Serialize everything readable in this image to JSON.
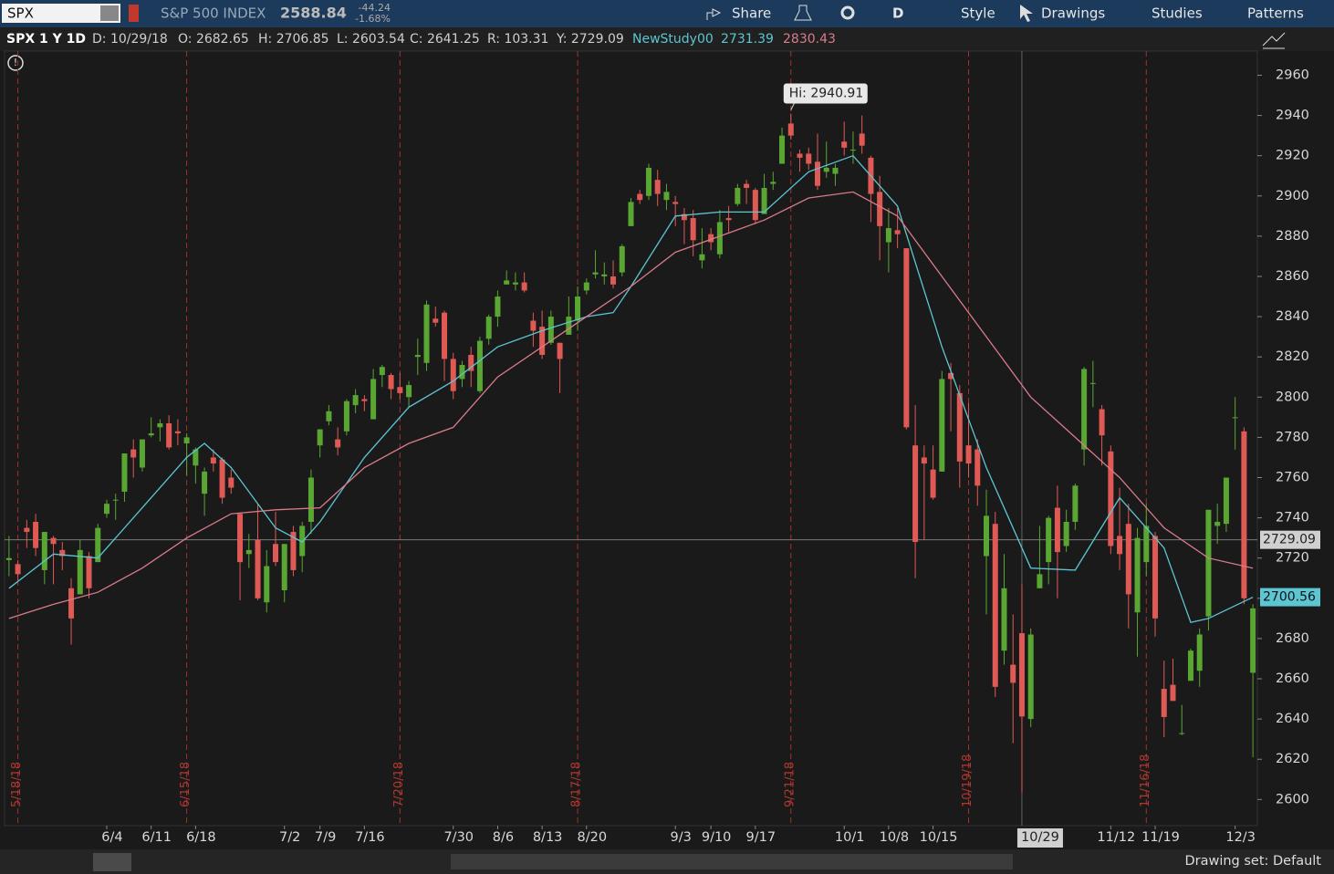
{
  "toolbar": {
    "symbol": "SPX",
    "name": "S&P 500 INDEX",
    "last": "2588.84",
    "change": "-44.24",
    "change_pct": "-1.68%",
    "share": "Share",
    "period": "D",
    "style": "Style",
    "drawings": "Drawings",
    "studies": "Studies",
    "patterns": "Patterns"
  },
  "info_bar": {
    "title": "SPX 1 Y 1D",
    "date": "D: 10/29/18",
    "open": "O: 2682.65",
    "high": "H: 2706.85",
    "low": "L: 2603.54",
    "close": "C: 2641.25",
    "range": "R: 103.31",
    "cursor": "Y: 2729.09",
    "study": "NewStudy00",
    "study_values": [
      "2731.39",
      "2830.43"
    ]
  },
  "status_bar": {
    "drawing_set": "Drawing set: Default"
  },
  "chart_data": {
    "type": "candlestick",
    "up_color": "#5aa632",
    "down_color": "#e05a55",
    "candles": [
      [
        2719,
        2731,
        2711,
        2720
      ],
      [
        2717,
        2719,
        2709,
        2712
      ],
      [
        2735,
        2739,
        2725,
        2733
      ],
      [
        2738,
        2742,
        2721,
        2725
      ],
      [
        2714,
        2733,
        2707,
        2733
      ],
      [
        2730,
        2731,
        2707,
        2727
      ],
      [
        2724,
        2728,
        2714,
        2721
      ],
      [
        2705,
        2710,
        2677,
        2690
      ],
      [
        2702,
        2729,
        2702,
        2724
      ],
      [
        2721,
        2723,
        2700,
        2705
      ],
      [
        2718,
        2737,
        2718,
        2735
      ],
      [
        2742,
        2749,
        2740,
        2747
      ],
      [
        2749,
        2752,
        2739,
        2749
      ],
      [
        2753,
        2772,
        2748,
        2772
      ],
      [
        2774,
        2779,
        2760,
        2770
      ],
      [
        2765,
        2779,
        2763,
        2779
      ],
      [
        2781,
        2790,
        2780,
        2782
      ],
      [
        2785,
        2789,
        2778,
        2787
      ],
      [
        2787,
        2791,
        2774,
        2775
      ],
      [
        2783,
        2789,
        2776,
        2782
      ],
      [
        2777,
        2782,
        2761,
        2780
      ],
      [
        2766,
        2775,
        2757,
        2774
      ],
      [
        2752,
        2765,
        2741,
        2763
      ],
      [
        2770,
        2774,
        2763,
        2767
      ],
      [
        2769,
        2770,
        2747,
        2750
      ],
      [
        2760,
        2764,
        2752,
        2755
      ],
      [
        2742,
        2742,
        2699,
        2718
      ],
      [
        2722,
        2732,
        2715,
        2724
      ],
      [
        2729,
        2747,
        2699,
        2700
      ],
      [
        2698,
        2724,
        2693,
        2716
      ],
      [
        2727,
        2743,
        2716,
        2718
      ],
      [
        2704,
        2727,
        2698,
        2727
      ],
      [
        2733,
        2736,
        2711,
        2714
      ],
      [
        2721,
        2738,
        2713,
        2736
      ],
      [
        2738,
        2764,
        2732,
        2760
      ],
      [
        2776,
        2784,
        2770,
        2784
      ],
      [
        2788,
        2796,
        2786,
        2793
      ],
      [
        2779,
        2785,
        2771,
        2775
      ],
      [
        2783,
        2799,
        2781,
        2798
      ],
      [
        2796,
        2804,
        2792,
        2801
      ],
      [
        2799,
        2801,
        2793,
        2798
      ],
      [
        2789,
        2814,
        2789,
        2809
      ],
      [
        2811,
        2816,
        2805,
        2815
      ],
      [
        2811,
        2812,
        2799,
        2804
      ],
      [
        2805,
        2812,
        2799,
        2802
      ],
      [
        2800,
        2808,
        2795,
        2806
      ],
      [
        2820,
        2829,
        2811,
        2821
      ],
      [
        2817,
        2848,
        2813,
        2846
      ],
      [
        2839,
        2845,
        2835,
        2837
      ],
      [
        2842,
        2843,
        2808,
        2819
      ],
      [
        2819,
        2822,
        2799,
        2803
      ],
      [
        2809,
        2818,
        2805,
        2816
      ],
      [
        2821,
        2825,
        2805,
        2813
      ],
      [
        2803,
        2830,
        2802,
        2828
      ],
      [
        2829,
        2841,
        2826,
        2840
      ],
      [
        2840,
        2853,
        2835,
        2850
      ],
      [
        2856,
        2863,
        2856,
        2858
      ],
      [
        2856,
        2862,
        2853,
        2857
      ],
      [
        2857,
        2862,
        2852,
        2853
      ],
      [
        2838,
        2842,
        2825,
        2833
      ],
      [
        2835,
        2843,
        2819,
        2821
      ],
      [
        2827,
        2843,
        2826,
        2840
      ],
      [
        2827,
        2827,
        2802,
        2819
      ],
      [
        2831,
        2850,
        2831,
        2840
      ],
      [
        2838,
        2855,
        2833,
        2850
      ],
      [
        2853,
        2859,
        2851,
        2857
      ],
      [
        2861,
        2873,
        2859,
        2862
      ],
      [
        2860,
        2867,
        2856,
        2861
      ],
      [
        2860,
        2868,
        2854,
        2856
      ],
      [
        2862,
        2876,
        2860,
        2875
      ],
      [
        2885,
        2899,
        2885,
        2897
      ],
      [
        2901,
        2903,
        2896,
        2898
      ],
      [
        2900,
        2916,
        2898,
        2914
      ],
      [
        2908,
        2913,
        2895,
        2901
      ],
      [
        2898,
        2906,
        2893,
        2902
      ],
      [
        2897,
        2900,
        2885,
        2896
      ],
      [
        2891,
        2894,
        2876,
        2888
      ],
      [
        2889,
        2893,
        2870,
        2878
      ],
      [
        2868,
        2884,
        2864,
        2871
      ],
      [
        2881,
        2884,
        2873,
        2877
      ],
      [
        2871,
        2893,
        2869,
        2887
      ],
      [
        2889,
        2895,
        2882,
        2888
      ],
      [
        2896,
        2906,
        2895,
        2904
      ],
      [
        2906,
        2908,
        2896,
        2904
      ],
      [
        2903,
        2904,
        2886,
        2888
      ],
      [
        2891,
        2911,
        2891,
        2904
      ],
      [
        2906,
        2912,
        2903,
        2907
      ],
      [
        2916,
        2934,
        2916,
        2930
      ],
      [
        2936,
        2940.91,
        2928,
        2930
      ],
      [
        2921,
        2923,
        2912,
        2919
      ],
      [
        2921,
        2924,
        2913,
        2916
      ],
      [
        2917,
        2931,
        2903,
        2905
      ],
      [
        2912,
        2927,
        2909,
        2914
      ],
      [
        2911,
        2916,
        2905,
        2914
      ],
      [
        2927,
        2937,
        2920,
        2924
      ],
      [
        2923,
        2932,
        2916,
        2923
      ],
      [
        2931,
        2940,
        2921,
        2925
      ],
      [
        2919,
        2920,
        2887,
        2901
      ],
      [
        2902,
        2910,
        2868,
        2885
      ],
      [
        2877,
        2894,
        2862,
        2884
      ],
      [
        2883,
        2894,
        2874,
        2881
      ],
      [
        2874,
        2874,
        2784,
        2785
      ],
      [
        2776,
        2796,
        2710,
        2728
      ],
      [
        2770,
        2776,
        2729,
        2767
      ],
      [
        2764,
        2776,
        2749,
        2750
      ],
      [
        2763,
        2813,
        2763,
        2809
      ],
      [
        2812,
        2817,
        2783,
        2809
      ],
      [
        2802,
        2806,
        2755,
        2768
      ],
      [
        2776,
        2797,
        2760,
        2767
      ],
      [
        2774,
        2779,
        2746,
        2756
      ],
      [
        2721,
        2754,
        2692,
        2741
      ],
      [
        2737,
        2743,
        2651,
        2656
      ],
      [
        2674,
        2722,
        2667,
        2705
      ],
      [
        2667,
        2692,
        2628,
        2658
      ],
      [
        2682.65,
        2706.85,
        2603.54,
        2641.25
      ],
      [
        2640,
        2685,
        2636,
        2682
      ],
      [
        2705,
        2736,
        2705,
        2712
      ],
      [
        2718,
        2741,
        2707,
        2740
      ],
      [
        2745,
        2756,
        2700,
        2723
      ],
      [
        2726,
        2744,
        2723,
        2738
      ],
      [
        2738,
        2757,
        2734,
        2756
      ],
      [
        2774,
        2815,
        2766,
        2814
      ],
      [
        2807,
        2818,
        2795,
        2807
      ],
      [
        2794,
        2796,
        2766,
        2781
      ],
      [
        2773,
        2776,
        2722,
        2726
      ],
      [
        2731,
        2755,
        2714,
        2722
      ],
      [
        2737,
        2747,
        2685,
        2702
      ],
      [
        2693,
        2735,
        2671,
        2730
      ],
      [
        2718,
        2747,
        2711,
        2736
      ],
      [
        2731,
        2733,
        2681,
        2690
      ],
      [
        2655,
        2669,
        2631,
        2641
      ],
      [
        2657,
        2670,
        2649,
        2649
      ],
      [
        2633,
        2647,
        2632,
        2633
      ],
      [
        2659,
        2675,
        2659,
        2674
      ],
      [
        2664,
        2685,
        2656,
        2682
      ],
      [
        2691,
        2744,
        2684,
        2744
      ],
      [
        2736,
        2747,
        2727,
        2738
      ],
      [
        2737,
        2760,
        2733,
        2760
      ],
      [
        2790,
        2800,
        2774,
        2790
      ],
      [
        2783,
        2785,
        2697,
        2700
      ],
      [
        2663,
        2697,
        2621,
        2695
      ]
    ],
    "series": [
      {
        "color": "#5cc6d3",
        "x": [
          0,
          5,
          10,
          15,
          20,
          22,
          25,
          30,
          33,
          35,
          40,
          45,
          50,
          55,
          60,
          65,
          68,
          70,
          75,
          80,
          85,
          90,
          95,
          100,
          105,
          110,
          115,
          120,
          125,
          130,
          133,
          135,
          140
        ],
        "values": [
          2705,
          2722,
          2720,
          2745,
          2770,
          2777,
          2765,
          2735,
          2728,
          2738,
          2770,
          2795,
          2808,
          2825,
          2833,
          2840,
          2842,
          2855,
          2890,
          2892,
          2892,
          2912,
          2920,
          2895,
          2825,
          2765,
          2715,
          2714,
          2750,
          2725,
          2688,
          2690,
          2700.56
        ]
      },
      {
        "color": "#d97b8a",
        "x": [
          0,
          5,
          10,
          15,
          20,
          25,
          30,
          35,
          40,
          45,
          50,
          55,
          60,
          65,
          70,
          75,
          80,
          85,
          90,
          95,
          100,
          105,
          110,
          115,
          120,
          125,
          130,
          135,
          140
        ],
        "values": [
          2690,
          2697,
          2703,
          2715,
          2730,
          2742,
          2744,
          2745,
          2765,
          2777,
          2785,
          2810,
          2825,
          2840,
          2855,
          2872,
          2880,
          2888,
          2899,
          2902,
          2890,
          2860,
          2830,
          2800,
          2780,
          2760,
          2735,
          2720,
          2715
        ]
      }
    ],
    "ylim": [
      2587,
      2972
    ],
    "yticks": [
      2600,
      2620,
      2640,
      2660,
      2680,
      2700,
      2720,
      2740,
      2760,
      2780,
      2800,
      2820,
      2840,
      2860,
      2880,
      2900,
      2920,
      2940,
      2960
    ],
    "xlim": [
      -0.5,
      140.5
    ],
    "xticks": [
      {
        "value": 11,
        "label": "6/4"
      },
      {
        "value": 16,
        "label": "6/11"
      },
      {
        "value": 21,
        "label": "6/18"
      },
      {
        "value": 31,
        "label": "7/2"
      },
      {
        "value": 35,
        "label": "7/9"
      },
      {
        "value": 40,
        "label": "7/16"
      },
      {
        "value": 50,
        "label": "7/30"
      },
      {
        "value": 55,
        "label": "8/6"
      },
      {
        "value": 60,
        "label": "8/13"
      },
      {
        "value": 65,
        "label": "8/20"
      },
      {
        "value": 75,
        "label": "9/3"
      },
      {
        "value": 79,
        "label": "9/10"
      },
      {
        "value": 84,
        "label": "9/17"
      },
      {
        "value": 94,
        "label": "10/1"
      },
      {
        "value": 99,
        "label": "10/8"
      },
      {
        "value": 104,
        "label": "10/15"
      },
      {
        "value": 124,
        "label": "11/12"
      },
      {
        "value": 129,
        "label": "11/19"
      },
      {
        "value": 138,
        "label": "12/3"
      }
    ],
    "events": [
      {
        "x": 1,
        "label": "5/18/18"
      },
      {
        "x": 20,
        "label": "6/15/18"
      },
      {
        "x": 44,
        "label": "7/20/18"
      },
      {
        "x": 64,
        "label": "8/17/18"
      },
      {
        "x": 88,
        "label": "9/21/18"
      },
      {
        "x": 108,
        "label": "10/19/18"
      },
      {
        "x": 128,
        "label": "11/16/18"
      }
    ],
    "annotation": {
      "x": 88,
      "value": 2940.91,
      "label": "Hi: 2940.91"
    },
    "crosshair": {
      "x": 114,
      "x_label": "10/29",
      "y": 2729.09,
      "y_label": "2729.09"
    },
    "last_tag": {
      "label": "2700.56"
    }
  }
}
